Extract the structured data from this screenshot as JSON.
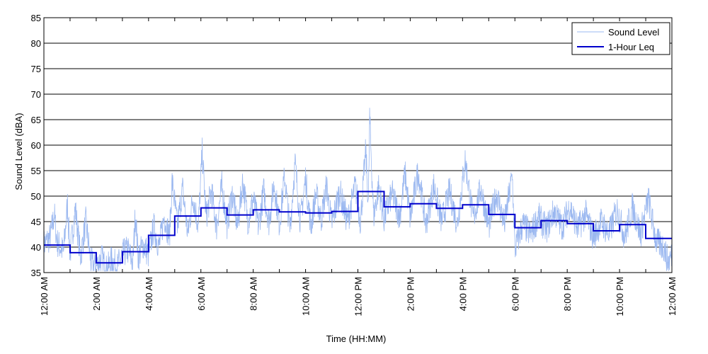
{
  "chart_data": {
    "type": "line",
    "title": "",
    "xlabel": "Time (HH:MM)",
    "ylabel": "Sound Level (dBA)",
    "ylim": [
      35,
      85
    ],
    "xlim_hours": [
      0,
      24
    ],
    "yticks": [
      35,
      40,
      45,
      50,
      55,
      60,
      65,
      70,
      75,
      80,
      85
    ],
    "xticks": [
      {
        "hour": 0,
        "label": "12:00 AM"
      },
      {
        "hour": 2,
        "label": "2:00 AM"
      },
      {
        "hour": 4,
        "label": "4:00 AM"
      },
      {
        "hour": 6,
        "label": "6:00 AM"
      },
      {
        "hour": 8,
        "label": "8:00 AM"
      },
      {
        "hour": 10,
        "label": "10:00 AM"
      },
      {
        "hour": 12,
        "label": "12:00 PM"
      },
      {
        "hour": 14,
        "label": "2:00 PM"
      },
      {
        "hour": 16,
        "label": "4:00 PM"
      },
      {
        "hour": 18,
        "label": "6:00 PM"
      },
      {
        "hour": 20,
        "label": "8:00 PM"
      },
      {
        "hour": 22,
        "label": "10:00 PM"
      },
      {
        "hour": 24,
        "label": "12:00 AM"
      }
    ],
    "grid": "horizontal",
    "legend_position": "top-right",
    "colors": {
      "sound_level": "#9bb8f0",
      "leq": "#0000cc"
    },
    "series": [
      {
        "name": "Sound Level",
        "style": "thin-noisy",
        "points": [
          [
            0.0,
            40.5
          ],
          [
            0.25,
            42.0
          ],
          [
            0.4,
            46.5
          ],
          [
            0.5,
            41.0
          ],
          [
            0.75,
            39.0
          ],
          [
            0.9,
            48.5
          ],
          [
            1.0,
            38.5
          ],
          [
            1.2,
            47.5
          ],
          [
            1.4,
            38.0
          ],
          [
            1.6,
            45.0
          ],
          [
            1.8,
            37.0
          ],
          [
            2.0,
            36.0
          ],
          [
            2.2,
            38.0
          ],
          [
            2.4,
            35.5
          ],
          [
            2.6,
            37.5
          ],
          [
            2.8,
            36.0
          ],
          [
            3.0,
            38.5
          ],
          [
            3.2,
            39.5
          ],
          [
            3.4,
            37.0
          ],
          [
            3.5,
            47.0
          ],
          [
            3.6,
            38.0
          ],
          [
            3.8,
            40.5
          ],
          [
            4.0,
            38.5
          ],
          [
            4.2,
            44.0
          ],
          [
            4.4,
            40.0
          ],
          [
            4.6,
            46.0
          ],
          [
            4.8,
            42.0
          ],
          [
            4.9,
            53.0
          ],
          [
            5.1,
            44.0
          ],
          [
            5.3,
            51.5
          ],
          [
            5.5,
            42.5
          ],
          [
            5.7,
            50.0
          ],
          [
            5.9,
            44.0
          ],
          [
            6.05,
            58.5
          ],
          [
            6.2,
            46.0
          ],
          [
            6.4,
            51.0
          ],
          [
            6.6,
            44.0
          ],
          [
            6.8,
            52.0
          ],
          [
            7.0,
            44.5
          ],
          [
            7.2,
            50.5
          ],
          [
            7.4,
            44.0
          ],
          [
            7.6,
            53.0
          ],
          [
            7.8,
            45.0
          ],
          [
            8.0,
            49.5
          ],
          [
            8.2,
            44.0
          ],
          [
            8.4,
            51.0
          ],
          [
            8.6,
            45.0
          ],
          [
            8.8,
            52.5
          ],
          [
            9.0,
            44.5
          ],
          [
            9.2,
            54.0
          ],
          [
            9.4,
            43.5
          ],
          [
            9.6,
            56.5
          ],
          [
            9.8,
            45.0
          ],
          [
            10.0,
            53.5
          ],
          [
            10.2,
            44.0
          ],
          [
            10.4,
            50.5
          ],
          [
            10.6,
            45.5
          ],
          [
            10.8,
            52.0
          ],
          [
            11.0,
            44.5
          ],
          [
            11.3,
            51.0
          ],
          [
            11.6,
            45.0
          ],
          [
            11.9,
            52.0
          ],
          [
            12.1,
            45.0
          ],
          [
            12.3,
            59.0
          ],
          [
            12.4,
            48.0
          ],
          [
            12.45,
            65.5
          ],
          [
            12.6,
            46.0
          ],
          [
            12.8,
            52.0
          ],
          [
            13.0,
            45.5
          ],
          [
            13.3,
            50.5
          ],
          [
            13.6,
            46.0
          ],
          [
            13.8,
            54.5
          ],
          [
            14.0,
            45.5
          ],
          [
            14.3,
            55.0
          ],
          [
            14.6,
            44.5
          ],
          [
            14.9,
            52.0
          ],
          [
            15.2,
            45.0
          ],
          [
            15.5,
            51.0
          ],
          [
            15.8,
            44.5
          ],
          [
            16.1,
            57.0
          ],
          [
            16.4,
            45.5
          ],
          [
            16.7,
            51.5
          ],
          [
            17.0,
            44.0
          ],
          [
            17.3,
            50.5
          ],
          [
            17.6,
            44.5
          ],
          [
            17.9,
            54.0
          ],
          [
            18.0,
            39.5
          ],
          [
            18.3,
            44.5
          ],
          [
            18.6,
            42.5
          ],
          [
            18.9,
            46.0
          ],
          [
            19.2,
            43.5
          ],
          [
            19.5,
            47.0
          ],
          [
            19.8,
            44.0
          ],
          [
            20.1,
            48.0
          ],
          [
            20.4,
            43.5
          ],
          [
            20.7,
            46.5
          ],
          [
            21.0,
            42.0
          ],
          [
            21.3,
            45.0
          ],
          [
            21.6,
            42.5
          ],
          [
            21.9,
            47.5
          ],
          [
            22.2,
            42.0
          ],
          [
            22.5,
            48.0
          ],
          [
            22.8,
            42.5
          ],
          [
            23.1,
            49.5
          ],
          [
            23.4,
            41.0
          ],
          [
            23.7,
            40.0
          ],
          [
            23.85,
            37.0
          ],
          [
            24.0,
            38.5
          ]
        ]
      },
      {
        "name": "1-Hour Leq",
        "style": "step",
        "hourly_values": [
          40.4,
          38.9,
          36.9,
          39.1,
          42.3,
          46.1,
          47.7,
          46.3,
          47.3,
          46.9,
          46.7,
          47.0,
          50.9,
          47.9,
          48.5,
          47.6,
          48.3,
          46.4,
          43.8,
          45.2,
          44.6,
          43.2,
          44.4,
          41.7
        ]
      }
    ]
  }
}
